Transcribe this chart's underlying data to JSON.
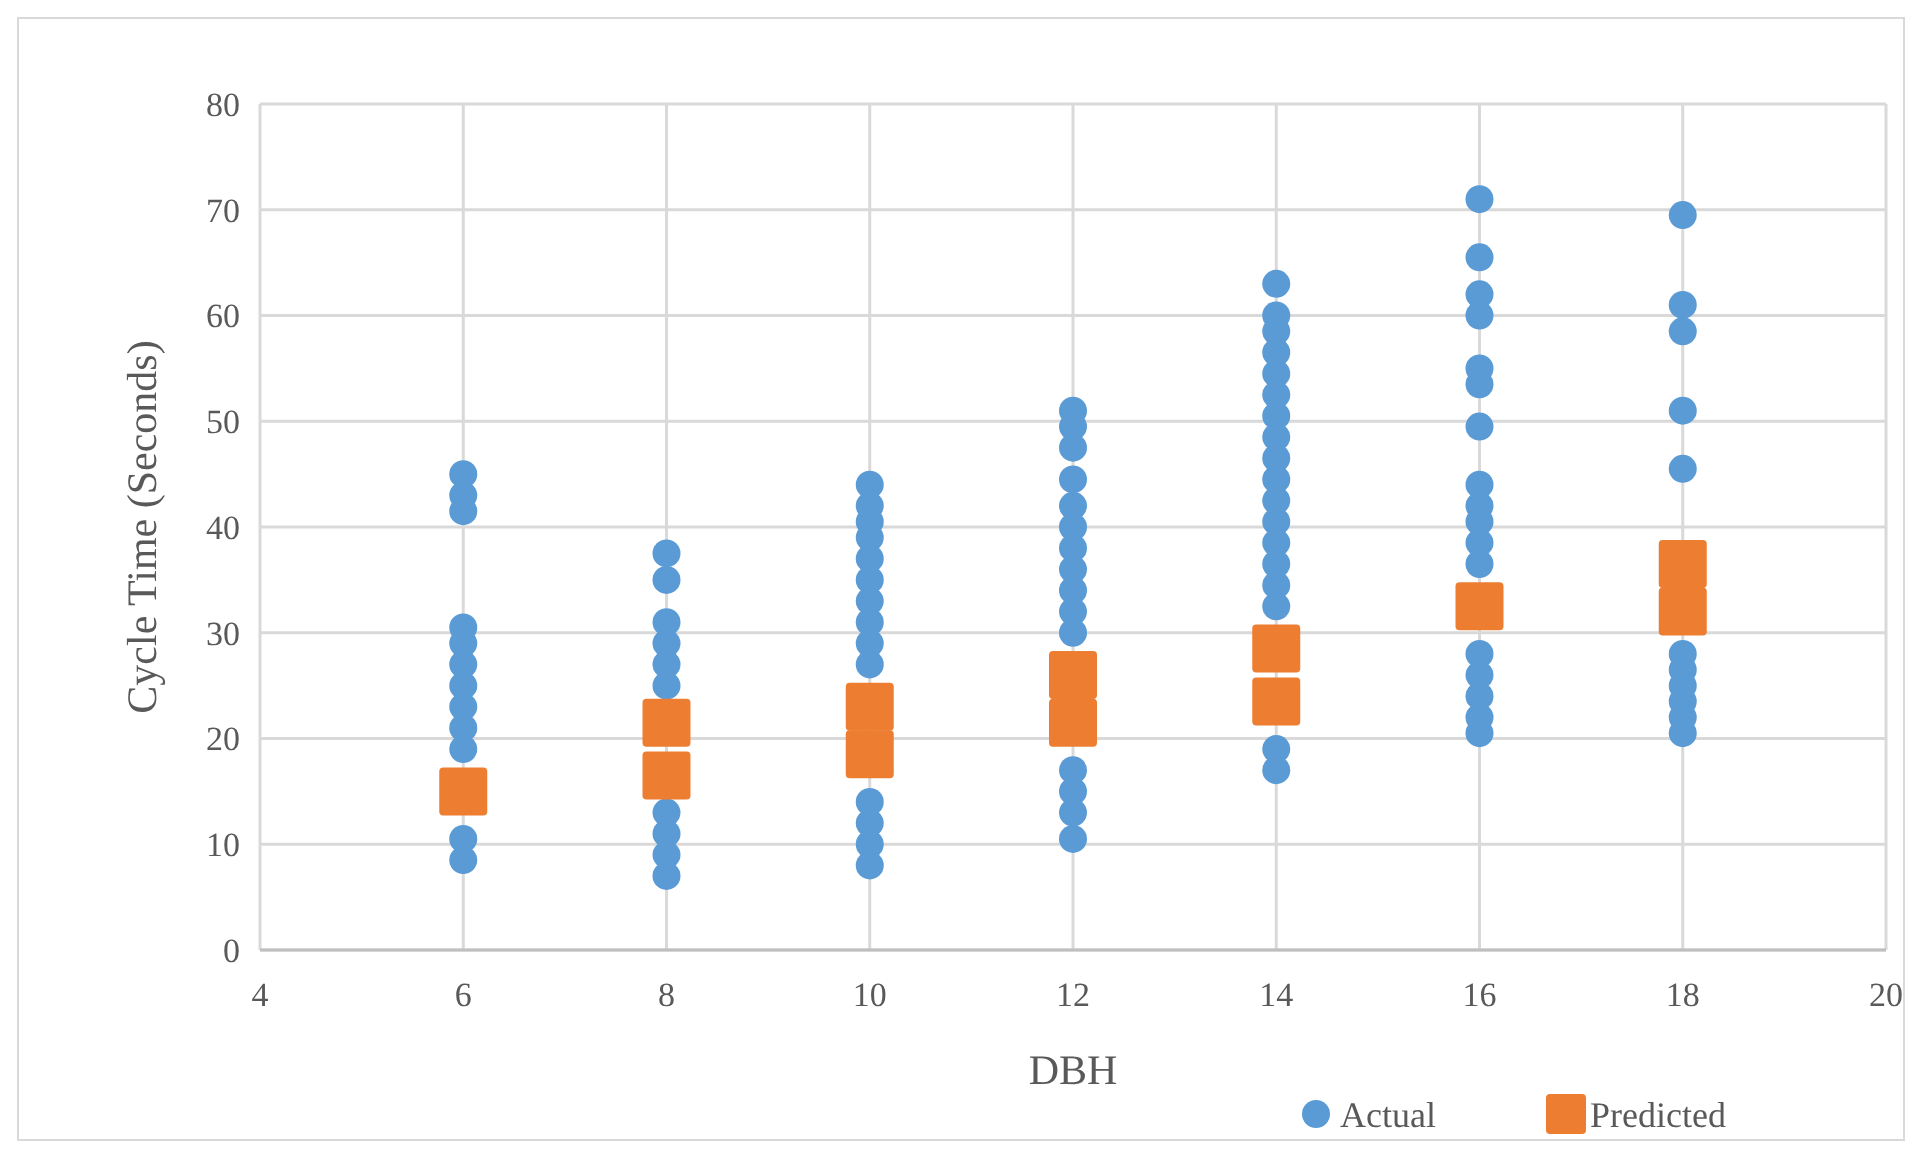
{
  "chart_data": {
    "type": "scatter",
    "xlabel": "DBH",
    "ylabel": "Cycle Time (Seconds)",
    "xlim": [
      4,
      20
    ],
    "xticks": [
      4,
      6,
      8,
      10,
      12,
      14,
      16,
      18,
      20
    ],
    "ylim": [
      0,
      80
    ],
    "yticks": [
      0,
      10,
      20,
      30,
      40,
      50,
      60,
      70,
      80
    ],
    "grid": true,
    "legend": "bottom right",
    "series": [
      {
        "name": "Actual",
        "color": "#5b9bd5",
        "marker": "circle",
        "x": [
          6,
          6,
          6,
          6,
          6,
          6,
          6,
          6,
          6,
          6,
          6,
          6,
          8,
          8,
          8,
          8,
          8,
          8,
          8,
          8,
          8,
          8,
          10,
          10,
          10,
          10,
          10,
          10,
          10,
          10,
          10,
          10,
          10,
          10,
          10,
          10,
          12,
          12,
          12,
          12,
          12,
          12,
          12,
          12,
          12,
          12,
          12,
          12,
          12,
          12,
          12,
          14,
          14,
          14,
          14,
          14,
          14,
          14,
          14,
          14,
          14,
          14,
          14,
          14,
          14,
          14,
          14,
          14,
          14,
          16,
          16,
          16,
          16,
          16,
          16,
          16,
          16,
          16,
          16,
          16,
          16,
          16,
          16,
          16,
          16,
          16,
          18,
          18,
          18,
          18,
          18,
          18,
          18,
          18,
          18,
          18,
          18
        ],
        "values": [
          8.5,
          10.5,
          19,
          21,
          23,
          25,
          27,
          29,
          30.5,
          41.5,
          43,
          45,
          7,
          9,
          11,
          13,
          25,
          27,
          29,
          31,
          35,
          37.5,
          8,
          10,
          12,
          14,
          27,
          29,
          31,
          33,
          35,
          37,
          39,
          40.5,
          42,
          44,
          10.5,
          13,
          15,
          17,
          30,
          32,
          34,
          36,
          38,
          40,
          42,
          44.5,
          47.5,
          49.5,
          51,
          17,
          19,
          32.5,
          34.5,
          36.5,
          38.5,
          40.5,
          42.5,
          44.5,
          46.5,
          48.5,
          50.5,
          52.5,
          54.5,
          56.5,
          58.5,
          60,
          63,
          20.5,
          22,
          24,
          26,
          28,
          36.5,
          38.5,
          40.5,
          42,
          44,
          49.5,
          53.5,
          55,
          60,
          62,
          65.5,
          71,
          20.5,
          22,
          23.5,
          25,
          26.5,
          28,
          45.5,
          51,
          58.5,
          61,
          69.5
        ]
      },
      {
        "name": "Predicted",
        "color": "#ed7d31",
        "marker": "square",
        "x": [
          6,
          8,
          8,
          10,
          10,
          12,
          12,
          14,
          14,
          16,
          18,
          18
        ],
        "values": [
          15,
          16.5,
          21.5,
          18.5,
          23,
          21.5,
          26,
          23.5,
          28.5,
          32.5,
          32,
          36.5
        ]
      }
    ]
  }
}
